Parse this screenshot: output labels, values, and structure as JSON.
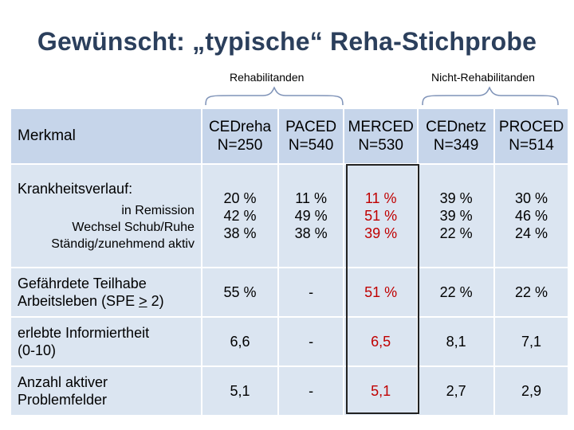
{
  "title": "Gewünscht: „typische“ Reha-Stichprobe",
  "groups": {
    "rehab": "Rehabilitanden",
    "nonrehab": "Nicht-Rehabilitanden"
  },
  "header": {
    "label": "Merkmal",
    "studies": [
      {
        "name": "CEDreha",
        "n": "N=250"
      },
      {
        "name": "PACED",
        "n": "N=540"
      },
      {
        "name": "MERCED",
        "n": "N=530"
      },
      {
        "name": "CEDnetz",
        "n": "N=349"
      },
      {
        "name": "PROCED",
        "n": "N=514"
      }
    ]
  },
  "rows": {
    "verlauf": {
      "label": "Krankheitsverlauf:",
      "sub": [
        "in Remission",
        "Wechsel Schub/Ruhe",
        "Ständig/zunehmend  aktiv"
      ],
      "values": [
        [
          "20 %",
          "42 %",
          "38 %"
        ],
        [
          "11 %",
          "49 %",
          "38 %"
        ],
        [
          "11 %",
          "51 %",
          "39 %"
        ],
        [
          "39 %",
          "39 %",
          "22 %"
        ],
        [
          "30 %",
          "46 %",
          "24 %"
        ]
      ]
    },
    "teilhabe": {
      "label_line1": "Gefährdete Teilhabe",
      "label_line2_pre": "Arbeitsleben (SPE ",
      "label_line2_gte": ">",
      "label_line2_post": " 2)",
      "values": [
        "55 %",
        "-",
        "51 %",
        "22 %",
        "22 %"
      ]
    },
    "info": {
      "label_line1": "erlebte Informiertheit",
      "label_line2": "(0-10)",
      "values": [
        "6,6",
        "-",
        "6,5",
        "8,1",
        "7,1"
      ]
    },
    "problem": {
      "label_line1": "Anzahl aktiver",
      "label_line2": "Problemfelder",
      "values": [
        "5,1",
        "-",
        "5,1",
        "2,7",
        "2,9"
      ]
    }
  },
  "colors": {
    "title": "#2b3f5c",
    "cell": "#dbe5f1",
    "header_cell": "#c6d5ea",
    "highlight": "#c00000",
    "brace": "#7f93b8"
  }
}
